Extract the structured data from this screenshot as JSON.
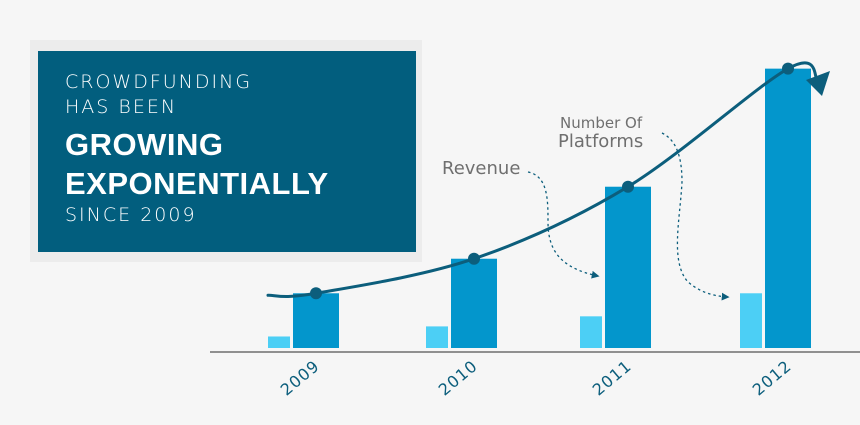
{
  "title": {
    "line1": "CROWDFUNDING",
    "line2": "HAS BEEN",
    "line3": "GROWING",
    "line4": "EXPONENTIALLY",
    "line5": "SINCE 2009"
  },
  "colors": {
    "card": "#025e7e",
    "revenue": "#4ccff5",
    "platforms": "#0396cc",
    "trend": "#0c5e7c",
    "axis": "#6f6f6f",
    "tick": "#0c5e7c",
    "callout": "#6f6f6f"
  },
  "chart_data": {
    "type": "bar",
    "categories": [
      "2009",
      "2010",
      "2011",
      "2012"
    ],
    "series": [
      {
        "name": "Revenue",
        "values": [
          0.4,
          0.75,
          1.1,
          1.9
        ]
      },
      {
        "name": "Number Of Platforms",
        "values": [
          1.9,
          3.1,
          5.6,
          9.7
        ]
      }
    ],
    "trend_line": {
      "shape": "exponential",
      "arrow": true
    },
    "callouts": [
      {
        "text": "Revenue",
        "series": "Revenue",
        "points_to": "2011"
      },
      {
        "line1": "Number Of",
        "line2": "Platforms",
        "series": "Number Of Platforms",
        "points_to": "2012"
      }
    ],
    "title": "",
    "xlabel": "",
    "ylabel": "",
    "ylim": [
      0,
      10
    ],
    "y_axis_shown": false,
    "grid": false,
    "legend": "none (callout labels)"
  }
}
